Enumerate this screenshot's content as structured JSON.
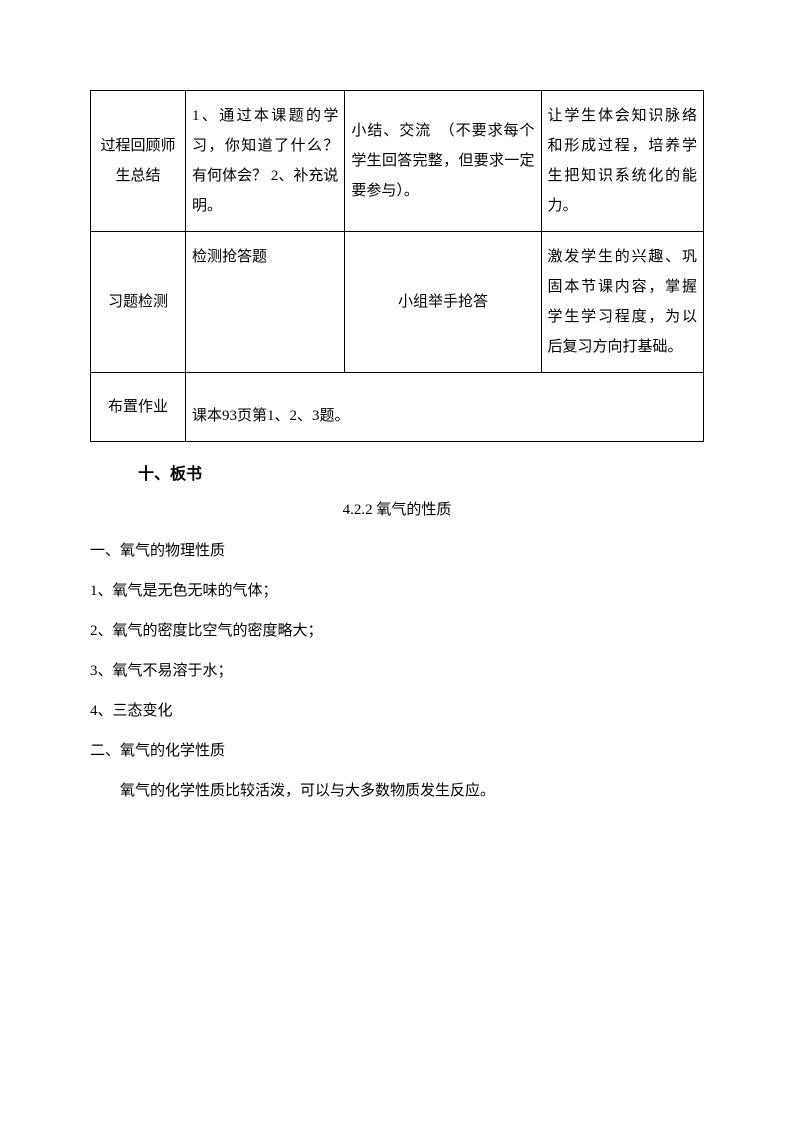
{
  "table": {
    "rows": [
      {
        "c1": "过程回顾师生总结",
        "c2": "1、通过本课题的学习，你知道了什么？有何体会？\n2、补充说明。",
        "c3": "小结、交流　（不要求每个学生回答完整，但要求一定要参与）。",
        "c4": "让学生体会知识脉络和形成过程，培养学生把知识系统化的能力。"
      },
      {
        "c1": "习题检测",
        "c2": "检测抢答题",
        "c3": "小组举手抢答",
        "c4": "激发学生的兴趣、巩固本节课内容，掌握学生学习程度，为以后复习方向打基础。"
      },
      {
        "c1": "布置作业",
        "c2": "课本93页第1、2、3题。"
      }
    ]
  },
  "heading": "十、板书",
  "subtitle": "4.2.2 氧气的性质",
  "lines": [
    "一、氧气的物理性质",
    "1、氧气是无色无味的气体；",
    "2、氧气的密度比空气的密度略大；",
    "3、氧气不易溶于水；",
    "4、三态变化",
    "二、氧气的化学性质"
  ],
  "final": "氧气的化学性质比较活泼，可以与大多数物质发生反应。"
}
